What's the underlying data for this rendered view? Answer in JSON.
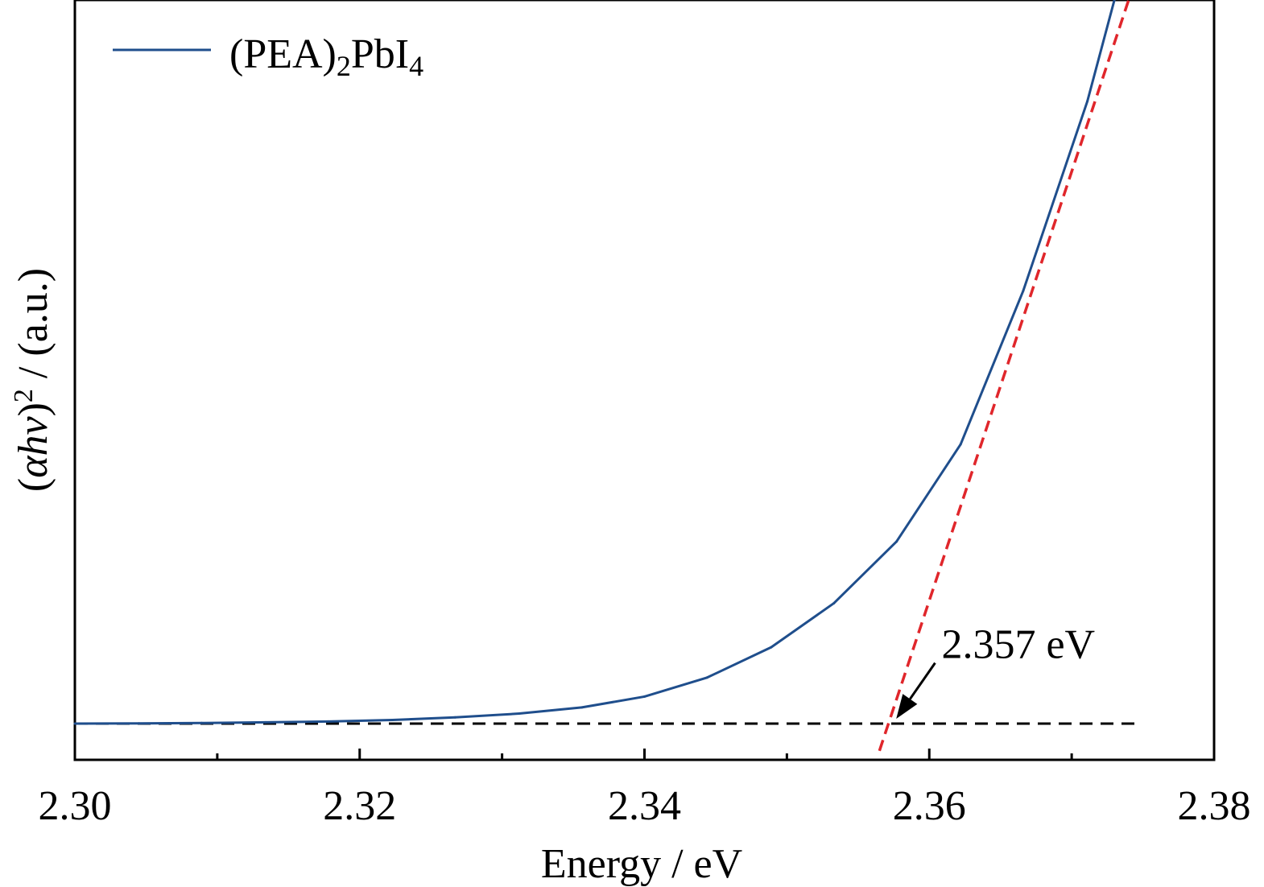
{
  "chart_data": {
    "type": "line",
    "xlabel": "Energy / eV",
    "ylabel": {
      "open": "(",
      "alpha": "α",
      "h": "h",
      "v": "v",
      "close": ")",
      "exp": "2",
      "unit": " / (a.u.)"
    },
    "xlim": [
      2.3,
      2.38
    ],
    "ylim": [
      -0.05,
      1.0
    ],
    "y_tick_labels": false,
    "x_ticks": [
      2.3,
      2.32,
      2.34,
      2.36,
      2.38
    ],
    "x_tick_labels": [
      "2.30",
      "2.32",
      "2.34",
      "2.36",
      "2.38"
    ],
    "x_minor_ticks": [
      2.31,
      2.33,
      2.35,
      2.37
    ],
    "grid": false,
    "legend": {
      "position": "top-left",
      "label_base": "(PEA)",
      "label_sub1": "2",
      "label_mid": "PbI",
      "label_sub2": "4"
    },
    "series": [
      {
        "name": "(PEA)2PbI4",
        "color": "#1f4e8c",
        "x": [
          2.3,
          2.3045,
          2.3089,
          2.3134,
          2.3178,
          2.3223,
          2.3267,
          2.3312,
          2.3356,
          2.34,
          2.3444,
          2.3489,
          2.3533,
          2.3577,
          2.3622,
          2.3666,
          2.3711,
          2.373
        ],
        "y": [
          0.0,
          0.0003,
          0.0009,
          0.0018,
          0.003,
          0.0051,
          0.0087,
          0.0139,
          0.0224,
          0.0374,
          0.0637,
          0.1056,
          0.1664,
          0.2516,
          0.386,
          0.5983,
          0.86,
          1.0
        ]
      }
    ],
    "tangent_line": {
      "color": "#e0262b",
      "style": "dashed",
      "x": [
        2.3565,
        2.374
      ],
      "y": [
        -0.0375,
        1.0
      ]
    },
    "baseline": {
      "color": "#000000",
      "style": "dashed",
      "y": 0.0,
      "x": [
        2.3,
        2.3745
      ]
    },
    "annotation": {
      "text": "2.357 eV",
      "point_x": 2.357,
      "point_y": 0.0,
      "text_x": 2.3612,
      "text_y": 0.095
    }
  }
}
